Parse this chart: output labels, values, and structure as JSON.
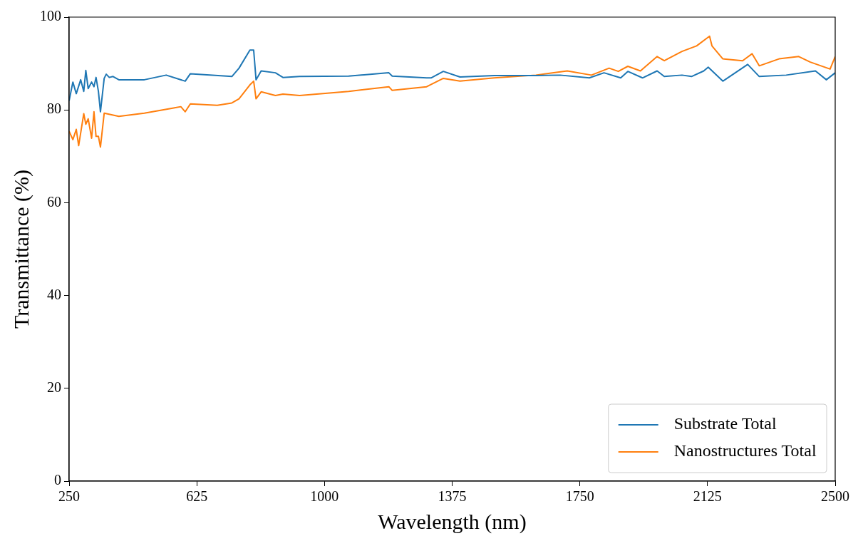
{
  "chart_data": {
    "type": "line",
    "xlabel": "Wavelength (nm)",
    "ylabel": "Transmittance (%)",
    "xlim": [
      250,
      2500
    ],
    "xticks": [
      250,
      625,
      1000,
      1375,
      1750,
      2125,
      2500
    ],
    "ylim": [
      0,
      100
    ],
    "yticks": [
      0,
      20,
      40,
      60,
      80,
      100
    ],
    "grid": false,
    "legend": "bottom right",
    "marker": "none",
    "line_style": "solid",
    "series": [
      {
        "name": "Substrate Total",
        "color": "#1f77b4",
        "x": [
          250,
          261,
          271,
          284,
          293,
          299,
          306,
          316,
          323,
          329,
          336,
          342,
          353,
          359,
          368,
          379,
          396,
          471,
          535,
          591,
          606,
          728,
          749,
          781,
          792,
          799,
          814,
          856,
          878,
          927,
          1071,
          1189,
          1199,
          1300,
          1313,
          1349,
          1398,
          1499,
          1621,
          1692,
          1778,
          1821,
          1870,
          1891,
          1934,
          1977,
          1998,
          2050,
          2078,
          2114,
          2127,
          2170,
          2243,
          2277,
          2356,
          2442,
          2474,
          2500
        ],
        "values": [
          82,
          86,
          83.5,
          86.5,
          84,
          88.5,
          84.6,
          86,
          85,
          87,
          84,
          79.6,
          86.8,
          87.7,
          87,
          87.2,
          86.5,
          86.5,
          87.5,
          86.2,
          87.8,
          87.2,
          89,
          92.9,
          92.9,
          86.5,
          88.4,
          88,
          87,
          87.2,
          87.3,
          88,
          87.3,
          86.9,
          86.9,
          88.3,
          87.1,
          87.4,
          87.4,
          87.5,
          86.9,
          88,
          86.9,
          88.3,
          86.9,
          88.4,
          87.2,
          87.5,
          87.2,
          88.4,
          89.2,
          86.2,
          89.8,
          87.2,
          87.5,
          88.4,
          86.5,
          88
        ]
      },
      {
        "name": "Nanostructures Total",
        "color": "#ff7f0e",
        "x": [
          250,
          261,
          271,
          278,
          293,
          299,
          306,
          316,
          323,
          329,
          336,
          342,
          353,
          396,
          471,
          557,
          578,
          591,
          606,
          685,
          728,
          749,
          781,
          792,
          799,
          814,
          856,
          878,
          927,
          1071,
          1189,
          1199,
          1300,
          1349,
          1398,
          1499,
          1621,
          1713,
          1784,
          1836,
          1863,
          1891,
          1928,
          1977,
          1998,
          2050,
          2093,
          2131,
          2138,
          2170,
          2228,
          2256,
          2277,
          2335,
          2393,
          2427,
          2485,
          2500
        ],
        "values": [
          75.4,
          73.6,
          75.8,
          72.3,
          79.2,
          76.9,
          78.1,
          73.9,
          79.6,
          74.3,
          74.3,
          72,
          79.3,
          78.6,
          79.3,
          80.4,
          80.7,
          79.6,
          81.3,
          81,
          81.5,
          82.4,
          85.4,
          86.2,
          82.4,
          83.9,
          83.1,
          83.4,
          83.1,
          84,
          85,
          84.2,
          85,
          86.8,
          86.2,
          86.9,
          87.5,
          88.4,
          87.5,
          89,
          88.3,
          89.4,
          88.4,
          91.5,
          90.6,
          92.6,
          93.8,
          95.9,
          93.8,
          91,
          90.6,
          92.1,
          89.5,
          91,
          91.5,
          90.3,
          88.8,
          91.5
        ]
      }
    ]
  }
}
